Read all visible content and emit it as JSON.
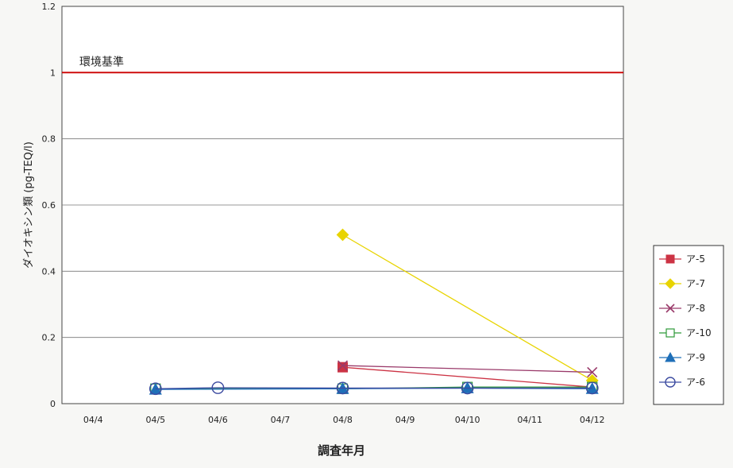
{
  "chart_data": {
    "type": "line",
    "title": "",
    "xlabel": "調査年月",
    "ylabel": "ダイオキシン類 (pg-TEQ/l)",
    "categories": [
      "04/4",
      "04/5",
      "04/6",
      "04/7",
      "04/8",
      "04/9",
      "04/10",
      "04/11",
      "04/12"
    ],
    "ylim": [
      0,
      1.2
    ],
    "yticks": [
      0,
      0.2,
      0.4,
      0.6,
      0.8,
      1,
      1.2
    ],
    "grid": true,
    "legend_position": "right",
    "reference_line": {
      "value": 1.0,
      "label": "環境基準",
      "color": "#cc0000"
    },
    "series": [
      {
        "name": "ア-5",
        "color": "#cc3344",
        "marker": "square",
        "values": [
          null,
          null,
          null,
          null,
          0.11,
          null,
          null,
          null,
          0.05
        ]
      },
      {
        "name": "ア-7",
        "color": "#e8d400",
        "marker": "diamond",
        "values": [
          null,
          null,
          null,
          null,
          0.51,
          null,
          null,
          null,
          0.07
        ]
      },
      {
        "name": "ア-8",
        "color": "#9a3a6a",
        "marker": "x",
        "values": [
          null,
          null,
          null,
          null,
          0.115,
          null,
          null,
          null,
          0.095
        ]
      },
      {
        "name": "ア-10",
        "color": "#2e9a3a",
        "marker": "square-open",
        "values": [
          null,
          0.045,
          null,
          null,
          0.045,
          null,
          0.05,
          null,
          0.05
        ]
      },
      {
        "name": "ア-9",
        "color": "#1f6fb8",
        "marker": "triangle",
        "values": [
          null,
          0.043,
          null,
          null,
          0.045,
          null,
          0.047,
          null,
          0.045
        ]
      },
      {
        "name": "ア-6",
        "color": "#3b4aa0",
        "marker": "circle-open",
        "values": [
          null,
          0.045,
          0.048,
          null,
          0.047,
          null,
          0.047,
          null,
          0.047
        ]
      }
    ]
  }
}
